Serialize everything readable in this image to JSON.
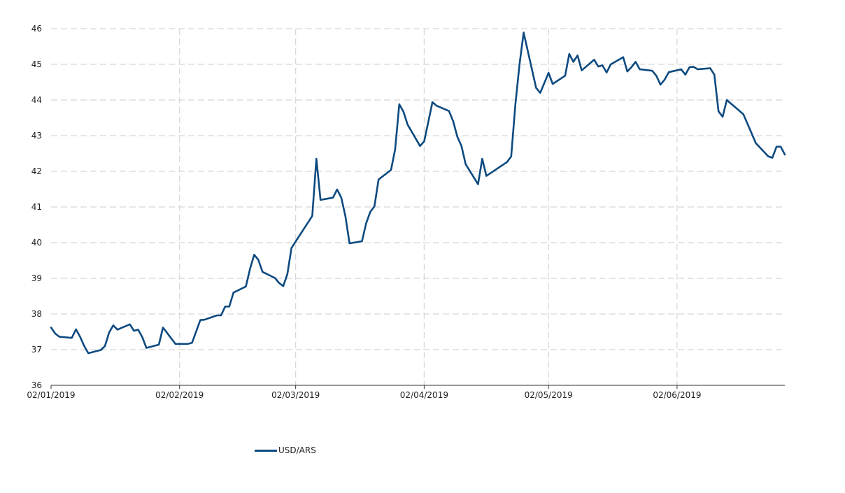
{
  "chart_data": {
    "type": "line",
    "title": "",
    "xlabel": "",
    "ylabel": "",
    "x_tick_labels": [
      {
        "date": "2019-01-02",
        "label": "02/01/2019"
      },
      {
        "date": "2019-02-02",
        "label": "02/02/2019"
      },
      {
        "date": "2019-03-02",
        "label": "02/03/2019"
      },
      {
        "date": "2019-04-02",
        "label": "02/04/2019"
      },
      {
        "date": "2019-05-02",
        "label": "02/05/2019"
      },
      {
        "date": "2019-06-02",
        "label": "02/06/2019"
      }
    ],
    "xlim": [
      "2019-01-02",
      "2019-06-28"
    ],
    "ylim": [
      36,
      46
    ],
    "y_ticks": [
      36,
      37,
      38,
      39,
      40,
      41,
      42,
      43,
      44,
      45,
      46
    ],
    "grid": true,
    "legend_position": "bottom-center",
    "series": [
      {
        "name": "USD/ARS",
        "color": "#0d4a80",
        "points": [
          [
            "2019-01-02",
            37.62
          ],
          [
            "2019-01-03",
            37.45
          ],
          [
            "2019-01-04",
            37.36
          ],
          [
            "2019-01-07",
            37.33
          ],
          [
            "2019-01-08",
            37.57
          ],
          [
            "2019-01-09",
            37.36
          ],
          [
            "2019-01-10",
            37.1
          ],
          [
            "2019-01-11",
            36.9
          ],
          [
            "2019-01-14",
            36.99
          ],
          [
            "2019-01-15",
            37.1
          ],
          [
            "2019-01-16",
            37.48
          ],
          [
            "2019-01-17",
            37.68
          ],
          [
            "2019-01-18",
            37.56
          ],
          [
            "2019-01-21",
            37.71
          ],
          [
            "2019-01-22",
            37.53
          ],
          [
            "2019-01-23",
            37.56
          ],
          [
            "2019-01-24",
            37.35
          ],
          [
            "2019-01-25",
            37.05
          ],
          [
            "2019-01-28",
            37.14
          ],
          [
            "2019-01-29",
            37.62
          ],
          [
            "2019-02-01",
            37.16
          ],
          [
            "2019-02-04",
            37.16
          ],
          [
            "2019-02-05",
            37.19
          ],
          [
            "2019-02-07",
            37.83
          ],
          [
            "2019-02-08",
            37.84
          ],
          [
            "2019-02-11",
            37.96
          ],
          [
            "2019-02-12",
            37.96
          ],
          [
            "2019-02-13",
            38.21
          ],
          [
            "2019-02-14",
            38.21
          ],
          [
            "2019-02-15",
            38.6
          ],
          [
            "2019-02-18",
            38.77
          ],
          [
            "2019-02-19",
            39.27
          ],
          [
            "2019-02-20",
            39.66
          ],
          [
            "2019-02-21",
            39.52
          ],
          [
            "2019-02-22",
            39.18
          ],
          [
            "2019-02-25",
            39.01
          ],
          [
            "2019-02-26",
            38.87
          ],
          [
            "2019-02-27",
            38.78
          ],
          [
            "2019-02-28",
            39.12
          ],
          [
            "2019-03-01",
            39.85
          ],
          [
            "2019-03-06",
            40.75
          ],
          [
            "2019-03-07",
            42.35
          ],
          [
            "2019-03-08",
            41.2
          ],
          [
            "2019-03-11",
            41.26
          ],
          [
            "2019-03-12",
            41.49
          ],
          [
            "2019-03-13",
            41.26
          ],
          [
            "2019-03-14",
            40.74
          ],
          [
            "2019-03-15",
            39.98
          ],
          [
            "2019-03-18",
            40.04
          ],
          [
            "2019-03-19",
            40.54
          ],
          [
            "2019-03-20",
            40.86
          ],
          [
            "2019-03-21",
            41.02
          ],
          [
            "2019-03-22",
            41.77
          ],
          [
            "2019-03-25",
            42.04
          ],
          [
            "2019-03-26",
            42.62
          ],
          [
            "2019-03-27",
            43.88
          ],
          [
            "2019-03-28",
            43.67
          ],
          [
            "2019-03-29",
            43.31
          ],
          [
            "2019-04-01",
            42.71
          ],
          [
            "2019-04-02",
            42.84
          ],
          [
            "2019-04-04",
            43.94
          ],
          [
            "2019-04-05",
            43.84
          ],
          [
            "2019-04-08",
            43.69
          ],
          [
            "2019-04-09",
            43.4
          ],
          [
            "2019-04-10",
            42.97
          ],
          [
            "2019-04-11",
            42.71
          ],
          [
            "2019-04-12",
            42.2
          ],
          [
            "2019-04-15",
            41.64
          ],
          [
            "2019-04-16",
            42.35
          ],
          [
            "2019-04-17",
            41.87
          ],
          [
            "2019-04-22",
            42.26
          ],
          [
            "2019-04-23",
            42.42
          ],
          [
            "2019-04-24",
            43.88
          ],
          [
            "2019-04-25",
            45.0
          ],
          [
            "2019-04-26",
            45.89
          ],
          [
            "2019-04-29",
            44.34
          ],
          [
            "2019-04-30",
            44.2
          ],
          [
            "2019-05-02",
            44.76
          ],
          [
            "2019-05-03",
            44.45
          ],
          [
            "2019-05-06",
            44.68
          ],
          [
            "2019-05-07",
            45.29
          ],
          [
            "2019-05-08",
            45.07
          ],
          [
            "2019-05-09",
            45.25
          ],
          [
            "2019-05-10",
            44.83
          ],
          [
            "2019-05-13",
            45.13
          ],
          [
            "2019-05-14",
            44.94
          ],
          [
            "2019-05-15",
            44.97
          ],
          [
            "2019-05-16",
            44.77
          ],
          [
            "2019-05-17",
            45.0
          ],
          [
            "2019-05-20",
            45.2
          ],
          [
            "2019-05-21",
            44.8
          ],
          [
            "2019-05-22",
            44.92
          ],
          [
            "2019-05-23",
            45.07
          ],
          [
            "2019-05-24",
            44.86
          ],
          [
            "2019-05-27",
            44.82
          ],
          [
            "2019-05-28",
            44.68
          ],
          [
            "2019-05-29",
            44.43
          ],
          [
            "2019-05-30",
            44.57
          ],
          [
            "2019-05-31",
            44.78
          ],
          [
            "2019-06-03",
            44.86
          ],
          [
            "2019-06-04",
            44.71
          ],
          [
            "2019-06-05",
            44.92
          ],
          [
            "2019-06-06",
            44.93
          ],
          [
            "2019-06-07",
            44.86
          ],
          [
            "2019-06-10",
            44.89
          ],
          [
            "2019-06-11",
            44.71
          ],
          [
            "2019-06-12",
            43.68
          ],
          [
            "2019-06-13",
            43.53
          ],
          [
            "2019-06-14",
            44.0
          ],
          [
            "2019-06-18",
            43.6
          ],
          [
            "2019-06-19",
            43.33
          ],
          [
            "2019-06-21",
            42.79
          ],
          [
            "2019-06-24",
            42.42
          ],
          [
            "2019-06-25",
            42.38
          ],
          [
            "2019-06-26",
            42.69
          ],
          [
            "2019-06-27",
            42.69
          ],
          [
            "2019-06-28",
            42.47
          ]
        ]
      }
    ]
  }
}
